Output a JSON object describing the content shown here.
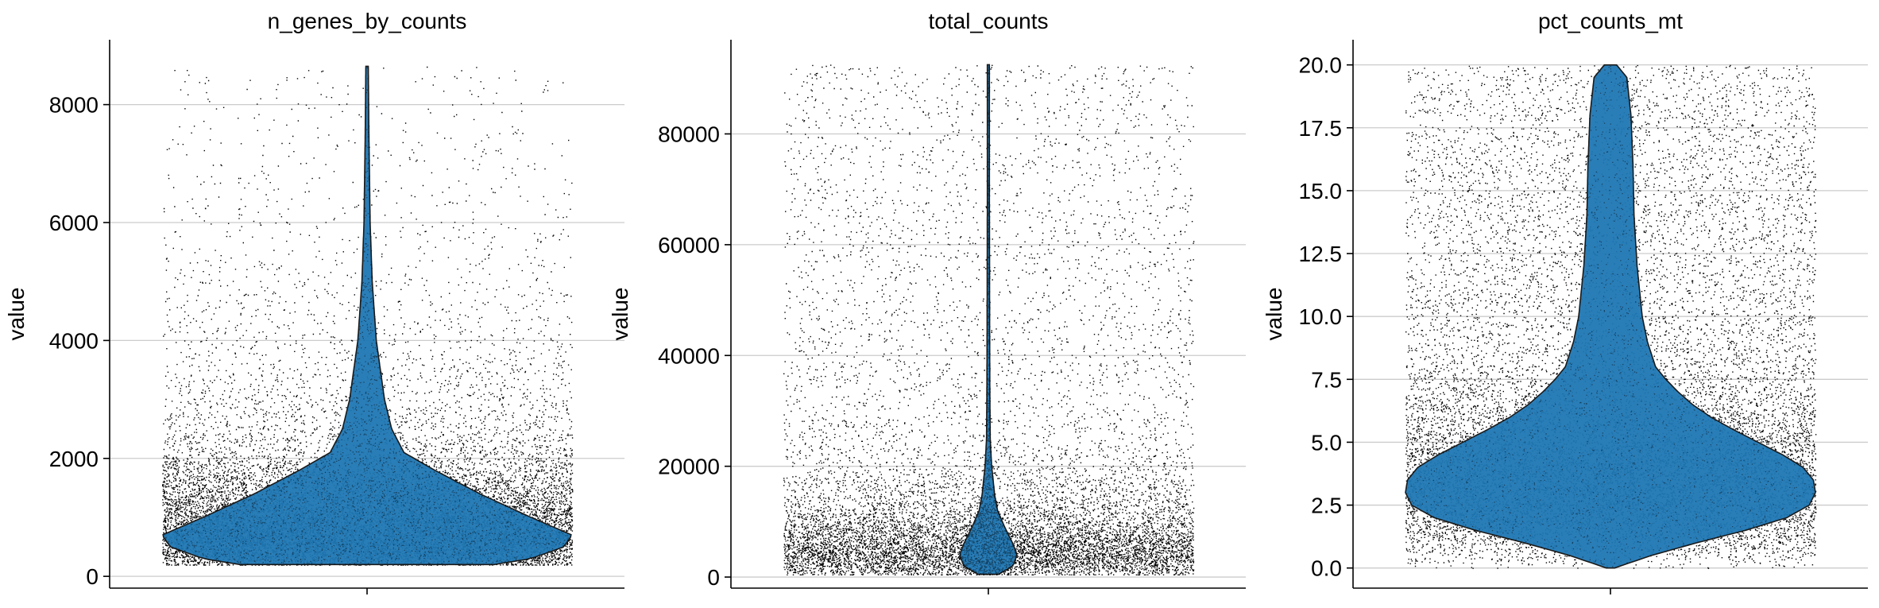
{
  "chart_data": [
    {
      "type": "violin",
      "title": "n_genes_by_counts",
      "ylabel": "value",
      "ylim": [
        -200,
        9100
      ],
      "yticks": [
        0,
        2000,
        4000,
        6000,
        8000
      ],
      "tick_labels": [
        "0",
        "2000",
        "4000",
        "6000",
        "8000"
      ],
      "grid": true,
      "color": "#1f77b4",
      "points_color": "#000000",
      "data_range": [
        200,
        8650
      ],
      "density": [
        {
          "y": 200,
          "w": 0.62
        },
        {
          "y": 300,
          "w": 0.8
        },
        {
          "y": 500,
          "w": 0.96
        },
        {
          "y": 700,
          "w": 1.0
        },
        {
          "y": 1000,
          "w": 0.8
        },
        {
          "y": 1400,
          "w": 0.55
        },
        {
          "y": 1800,
          "w": 0.33
        },
        {
          "y": 2100,
          "w": 0.18
        },
        {
          "y": 2500,
          "w": 0.12
        },
        {
          "y": 3000,
          "w": 0.085
        },
        {
          "y": 3500,
          "w": 0.065
        },
        {
          "y": 4000,
          "w": 0.045
        },
        {
          "y": 5000,
          "w": 0.025
        },
        {
          "y": 6000,
          "w": 0.015
        },
        {
          "y": 7500,
          "w": 0.009
        },
        {
          "y": 8650,
          "w": 0.006
        }
      ]
    },
    {
      "type": "violin",
      "title": "total_counts",
      "ylabel": "value",
      "ylim": [
        -2000,
        97000
      ],
      "yticks": [
        0,
        20000,
        40000,
        60000,
        80000
      ],
      "tick_labels": [
        "0",
        "20000",
        "40000",
        "60000",
        "80000"
      ],
      "grid": true,
      "color": "#1f77b4",
      "points_color": "#000000",
      "data_range": [
        500,
        92500
      ],
      "density": [
        {
          "y": 500,
          "w": 0.05
        },
        {
          "y": 2000,
          "w": 0.12
        },
        {
          "y": 4000,
          "w": 0.14
        },
        {
          "y": 6000,
          "w": 0.12
        },
        {
          "y": 9000,
          "w": 0.08
        },
        {
          "y": 12000,
          "w": 0.045
        },
        {
          "y": 15000,
          "w": 0.03
        },
        {
          "y": 18000,
          "w": 0.022
        },
        {
          "y": 20000,
          "w": 0.016
        },
        {
          "y": 25000,
          "w": 0.009
        },
        {
          "y": 35000,
          "w": 0.007
        },
        {
          "y": 50000,
          "w": 0.006
        },
        {
          "y": 70000,
          "w": 0.005
        },
        {
          "y": 92500,
          "w": 0.005
        }
      ]
    },
    {
      "type": "violin",
      "title": "pct_counts_mt",
      "ylabel": "value",
      "ylim": [
        -0.8,
        21.0
      ],
      "yticks": [
        0,
        2.5,
        5,
        7.5,
        10,
        12.5,
        15,
        17.5,
        20
      ],
      "tick_labels": [
        "0.0",
        "2.5",
        "5.0",
        "7.5",
        "10.0",
        "12.5",
        "15.0",
        "17.5",
        "20.0"
      ],
      "grid": true,
      "color": "#1f77b4",
      "points_color": "#000000",
      "data_range": [
        0,
        20
      ],
      "density": [
        {
          "y": 0.0,
          "w": 0.02
        },
        {
          "y": 0.5,
          "w": 0.2
        },
        {
          "y": 1.0,
          "w": 0.42
        },
        {
          "y": 1.5,
          "w": 0.66
        },
        {
          "y": 2.0,
          "w": 0.86
        },
        {
          "y": 2.5,
          "w": 0.97
        },
        {
          "y": 3.0,
          "w": 1.0
        },
        {
          "y": 3.5,
          "w": 0.99
        },
        {
          "y": 4.0,
          "w": 0.94
        },
        {
          "y": 4.5,
          "w": 0.84
        },
        {
          "y": 5.0,
          "w": 0.72
        },
        {
          "y": 5.5,
          "w": 0.6
        },
        {
          "y": 6.0,
          "w": 0.49
        },
        {
          "y": 6.5,
          "w": 0.4
        },
        {
          "y": 7.0,
          "w": 0.33
        },
        {
          "y": 7.5,
          "w": 0.27
        },
        {
          "y": 8.0,
          "w": 0.22
        },
        {
          "y": 9.0,
          "w": 0.18
        },
        {
          "y": 10.0,
          "w": 0.155
        },
        {
          "y": 12.0,
          "w": 0.13
        },
        {
          "y": 14.0,
          "w": 0.115
        },
        {
          "y": 16.0,
          "w": 0.11
        },
        {
          "y": 18.0,
          "w": 0.1
        },
        {
          "y": 19.5,
          "w": 0.08
        },
        {
          "y": 20.0,
          "w": 0.03
        }
      ]
    }
  ]
}
